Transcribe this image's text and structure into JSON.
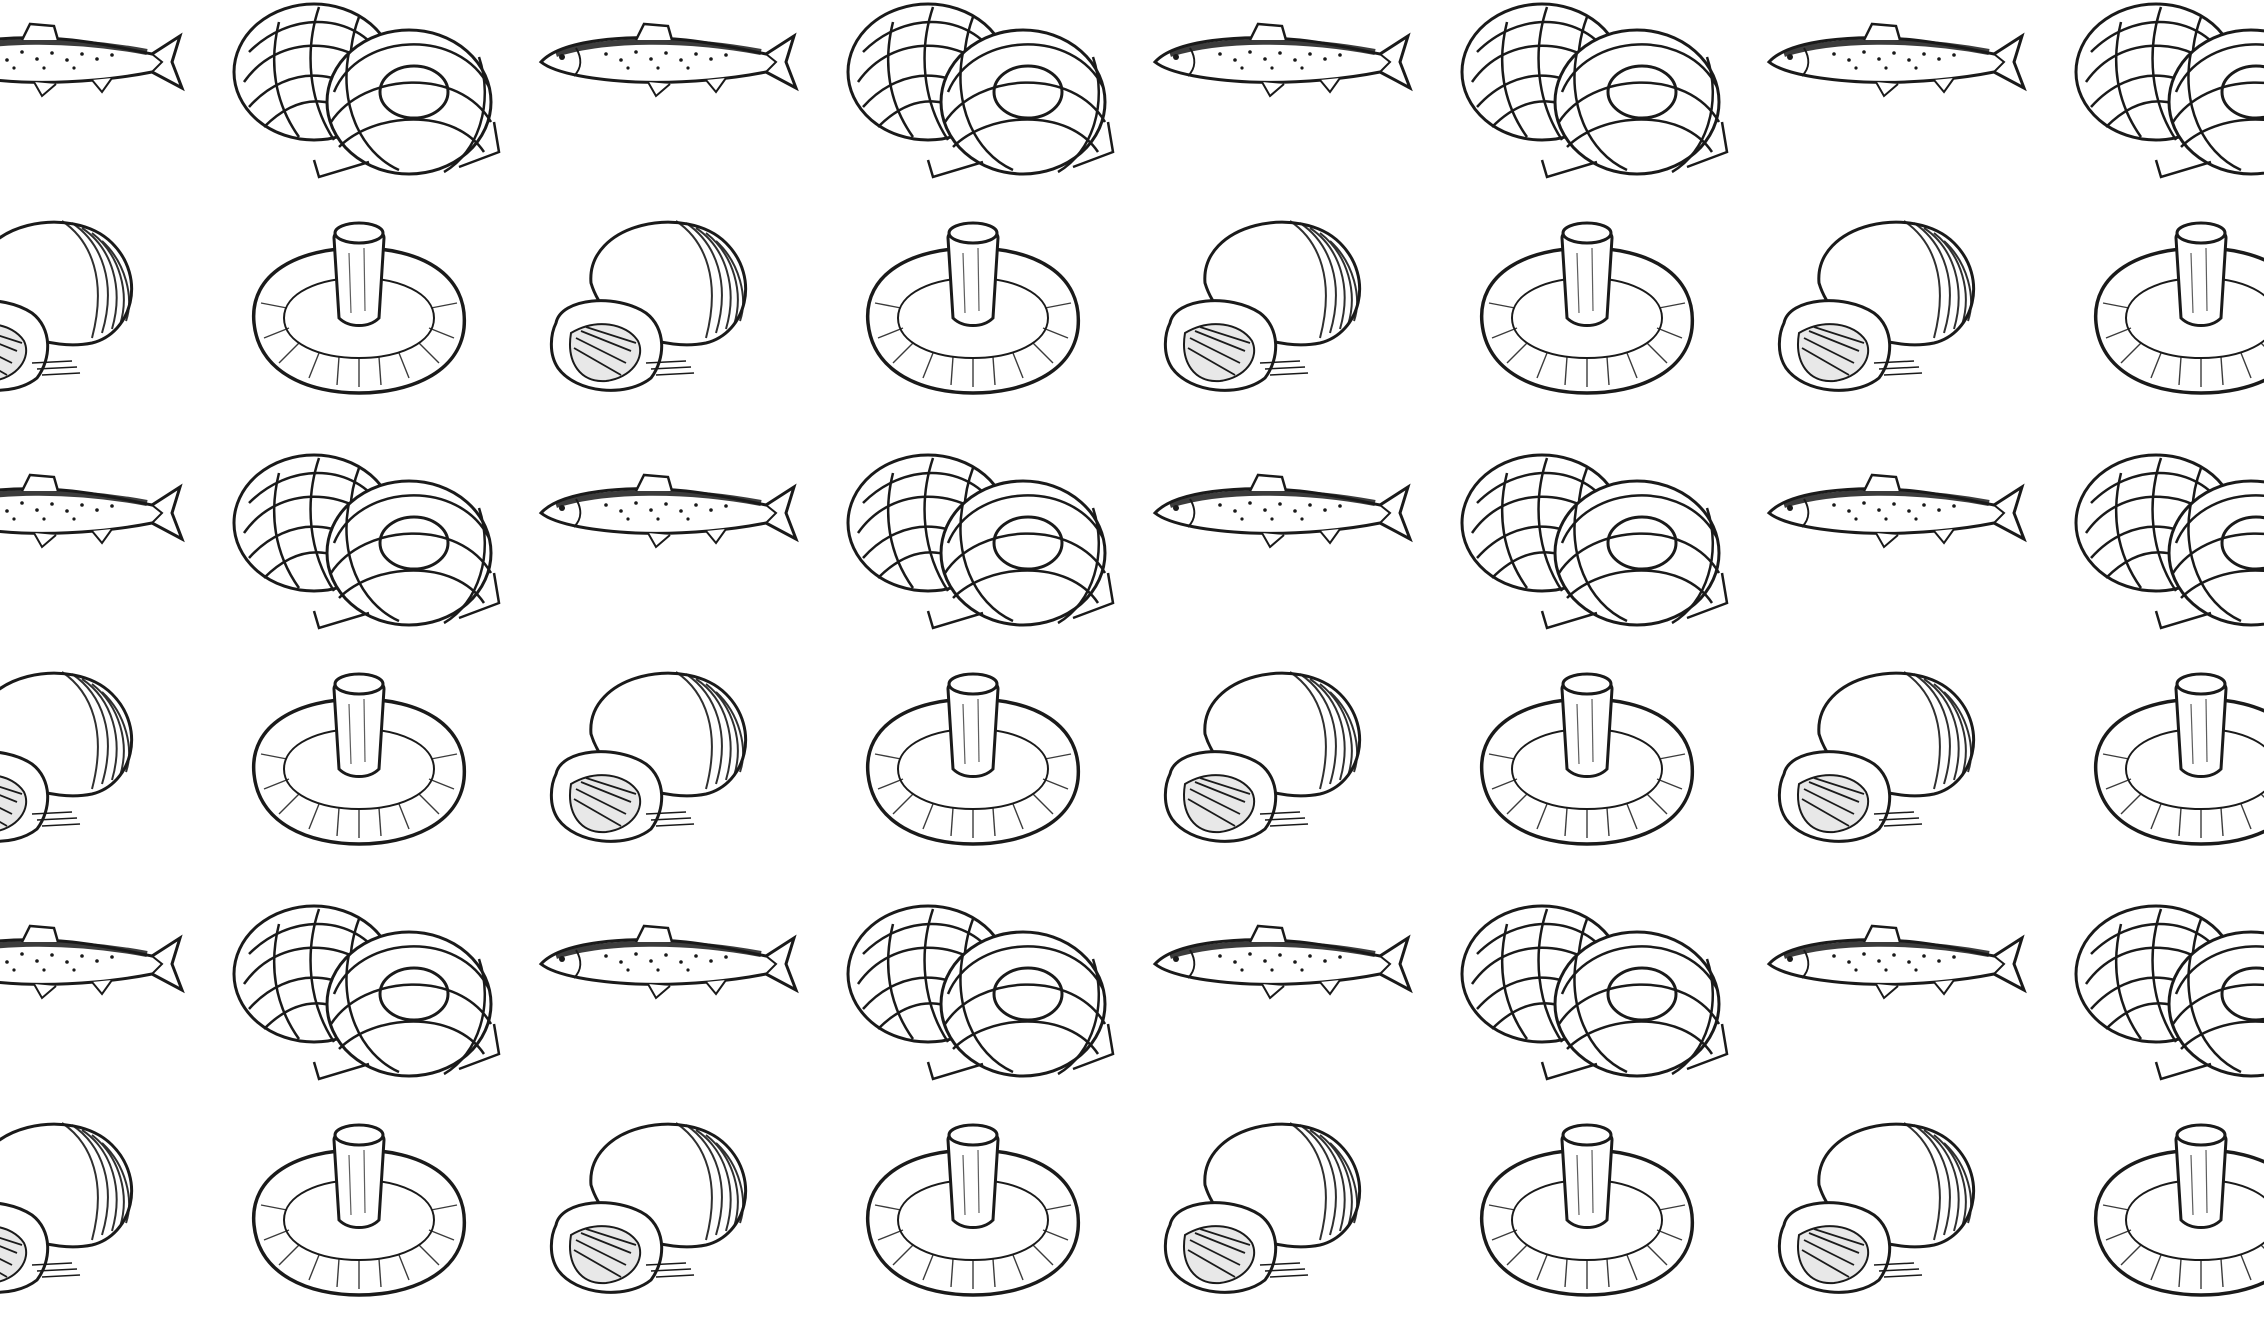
{
  "background_color": "#ffffff",
  "ink_color": "#1a1a1a",
  "pattern": {
    "description_items": [
      "fish-icon",
      "pasta-nest-icon",
      "mushroom-pair-icon",
      "mushroom-underside-icon"
    ],
    "tile_rows": [
      [
        "fish-icon",
        "pasta-nest-icon"
      ],
      [
        "mushroom-pair-icon",
        "mushroom-underside-icon"
      ]
    ]
  }
}
